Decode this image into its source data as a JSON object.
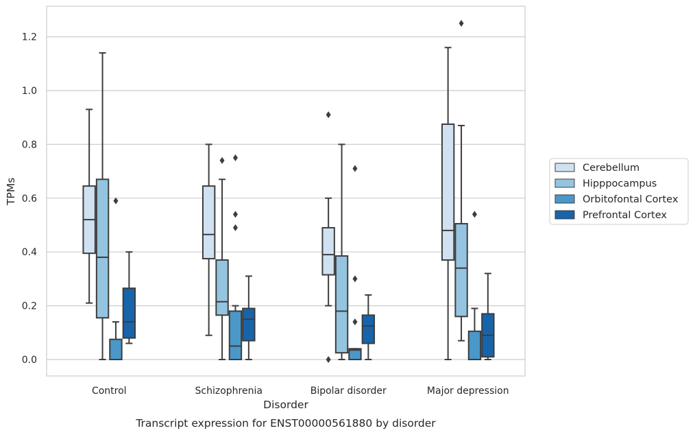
{
  "chart_data": {
    "type": "box",
    "title": "Transcript expression for ENST00000561880 by disorder",
    "xlabel": "Disorder",
    "ylabel": "TPMs",
    "ylim": [
      -0.06,
      1.32
    ],
    "yticks": [
      0.0,
      0.2,
      0.4,
      0.6,
      0.8,
      1.0,
      1.2
    ],
    "ytick_labels": [
      "0.0",
      "0.2",
      "0.4",
      "0.6",
      "0.8",
      "1.0",
      "1.2"
    ],
    "categories": [
      "Control",
      "Schizophrenia",
      "Bipolar disorder",
      "Major depression"
    ],
    "grid": "horizontal",
    "legend_position": "right",
    "series": [
      {
        "name": "Cerebellum",
        "color": "#d0e1f2",
        "boxes": [
          {
            "whisker_low": 0.21,
            "q1": 0.395,
            "median": 0.52,
            "q3": 0.645,
            "whisker_high": 0.93,
            "outliers": []
          },
          {
            "whisker_low": 0.09,
            "q1": 0.375,
            "median": 0.465,
            "q3": 0.645,
            "whisker_high": 0.8,
            "outliers": []
          },
          {
            "whisker_low": 0.2,
            "q1": 0.315,
            "median": 0.39,
            "q3": 0.49,
            "whisker_high": 0.6,
            "outliers": [
              0.91,
              0.0
            ]
          },
          {
            "whisker_low": 0.0,
            "q1": 0.37,
            "median": 0.48,
            "q3": 0.875,
            "whisker_high": 1.16,
            "outliers": []
          }
        ]
      },
      {
        "name": "Hipppocampus",
        "color": "#94c4df",
        "boxes": [
          {
            "whisker_low": 0.0,
            "q1": 0.155,
            "median": 0.38,
            "q3": 0.67,
            "whisker_high": 1.14,
            "outliers": []
          },
          {
            "whisker_low": 0.0,
            "q1": 0.165,
            "median": 0.215,
            "q3": 0.37,
            "whisker_high": 0.67,
            "outliers": [
              0.74
            ]
          },
          {
            "whisker_low": 0.0,
            "q1": 0.025,
            "median": 0.18,
            "q3": 0.385,
            "whisker_high": 0.8,
            "outliers": []
          },
          {
            "whisker_low": 0.07,
            "q1": 0.16,
            "median": 0.34,
            "q3": 0.505,
            "whisker_high": 0.87,
            "outliers": [
              1.25
            ]
          }
        ]
      },
      {
        "name": "Orbitofontal Cortex",
        "color": "#4a98c9",
        "boxes": [
          {
            "whisker_low": 0.0,
            "q1": 0.0,
            "median": 0.0,
            "q3": 0.075,
            "whisker_high": 0.14,
            "outliers": [
              0.59
            ]
          },
          {
            "whisker_low": 0.0,
            "q1": 0.0,
            "median": 0.05,
            "q3": 0.18,
            "whisker_high": 0.2,
            "outliers": [
              0.75,
              0.54,
              0.49
            ]
          },
          {
            "whisker_low": 0.0,
            "q1": 0.0,
            "median": 0.035,
            "q3": 0.04,
            "whisker_high": 0.04,
            "outliers": [
              0.71,
              0.3,
              0.14
            ]
          },
          {
            "whisker_low": 0.0,
            "q1": 0.0,
            "median": 0.0,
            "q3": 0.105,
            "whisker_high": 0.19,
            "outliers": [
              0.54
            ]
          }
        ]
      },
      {
        "name": "Prefrontal Cortex",
        "color": "#1764ab",
        "boxes": [
          {
            "whisker_low": 0.06,
            "q1": 0.08,
            "median": 0.14,
            "q3": 0.265,
            "whisker_high": 0.4,
            "outliers": []
          },
          {
            "whisker_low": 0.0,
            "q1": 0.07,
            "median": 0.15,
            "q3": 0.19,
            "whisker_high": 0.31,
            "outliers": []
          },
          {
            "whisker_low": 0.0,
            "q1": 0.06,
            "median": 0.125,
            "q3": 0.165,
            "whisker_high": 0.24,
            "outliers": []
          },
          {
            "whisker_low": 0.0,
            "q1": 0.01,
            "median": 0.09,
            "q3": 0.17,
            "whisker_high": 0.32,
            "outliers": []
          }
        ]
      }
    ]
  }
}
